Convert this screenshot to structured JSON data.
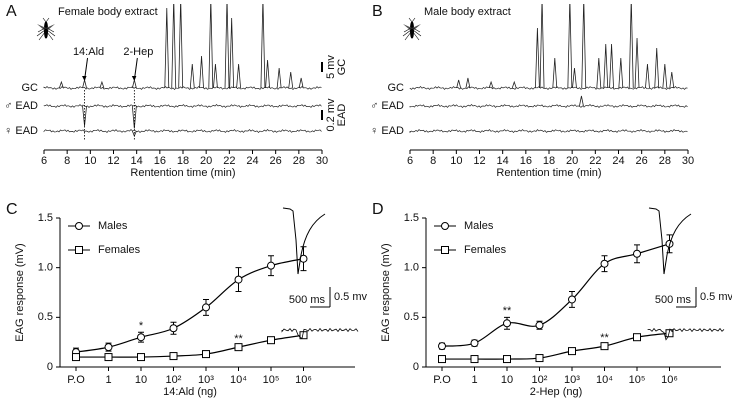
{
  "chart_data": [
    {
      "type": "trace",
      "panel": "A",
      "title": "Female body extract",
      "xlabel": "Rentention time (min)",
      "xlim": [
        6,
        30
      ],
      "xticks": [
        6,
        8,
        10,
        12,
        14,
        16,
        18,
        20,
        22,
        24,
        26,
        28,
        30
      ],
      "series": [
        {
          "name": "GC",
          "x": [
            7.5,
            9.5,
            11,
            13.8,
            16.6,
            17.2,
            17.8,
            18.8,
            19.6,
            20.4,
            20.8,
            21.8,
            22.2,
            22.8,
            24.9,
            25.3,
            26.3,
            27.3,
            28.2
          ],
          "values": [
            3,
            4,
            3,
            4,
            40,
            45,
            45,
            12,
            16,
            45,
            12,
            45,
            35,
            12,
            45,
            14,
            10,
            8,
            5
          ]
        },
        {
          "name": "♂ EAD",
          "x": [
            9.5,
            13.8
          ],
          "values": [
            -0.4,
            -0.45
          ]
        },
        {
          "name": "♀ EAD",
          "x": [
            13.8
          ],
          "values": [
            -0.1
          ]
        }
      ],
      "annotations": [
        {
          "text": "14:Ald",
          "x": 9.5
        },
        {
          "text": "2-Hep",
          "x": 13.8
        }
      ],
      "scale_bars": [
        {
          "value": 5,
          "label": "5 mv",
          "trace": "GC"
        },
        {
          "value": 0.2,
          "label": "0.2 mv",
          "trace": "EAD"
        }
      ]
    },
    {
      "type": "trace",
      "panel": "B",
      "title": "Male body extract",
      "xlabel": "Rentention time (min)",
      "xlim": [
        6,
        30
      ],
      "xticks": [
        6,
        8,
        10,
        12,
        14,
        16,
        18,
        20,
        22,
        24,
        26,
        28,
        30
      ],
      "series": [
        {
          "name": "GC",
          "x": [
            10.2,
            11,
            13,
            15,
            17,
            17.4,
            18.5,
            19.8,
            20.2,
            21,
            22.3,
            22.9,
            23.4,
            24.2,
            25.1,
            25.6,
            26.5,
            27.3,
            28,
            28.6
          ],
          "values": [
            4,
            5,
            3,
            3,
            30,
            45,
            15,
            45,
            10,
            45,
            15,
            22,
            22,
            15,
            45,
            25,
            12,
            20,
            12,
            8
          ]
        },
        {
          "name": "♂ EAD",
          "x": [
            20.8
          ],
          "values": [
            0.2
          ]
        },
        {
          "name": "♀ EAD"
        }
      ]
    },
    {
      "type": "line",
      "panel": "C",
      "xlabel": "14:Ald (ng)",
      "ylabel": "EAG response (mV)",
      "categories": [
        "P.O",
        "1",
        "10",
        "10²",
        "10³",
        "10⁴",
        "10⁵",
        "10⁶"
      ],
      "ylim": [
        0,
        1.5
      ],
      "yticks": [
        0,
        0.5,
        {
          "value": 1,
          "label": "1.0"
        },
        1.5
      ],
      "legend": "upper left",
      "series": [
        {
          "name": "Males",
          "marker": "circle",
          "color": "#000000",
          "values": [
            0.15,
            0.2,
            0.3,
            0.39,
            0.6,
            0.88,
            1.02,
            1.09
          ],
          "errors": [
            0.04,
            0.04,
            0.05,
            0.06,
            0.08,
            0.12,
            0.1,
            0.12
          ]
        },
        {
          "name": "Females",
          "marker": "square",
          "color": "#000000",
          "values": [
            0.1,
            0.1,
            0.1,
            0.11,
            0.13,
            0.2,
            0.27,
            0.32
          ],
          "errors": [
            0.02,
            0.02,
            0.02,
            0.02,
            0.02,
            0.02,
            0.03,
            0.03
          ]
        }
      ],
      "annotations": [
        {
          "text": "*",
          "series": 0,
          "category": 2
        },
        {
          "text": "**",
          "series": 1,
          "category": 5
        }
      ],
      "scale_bar": {
        "x": {
          "value": 500,
          "label": "500 ms"
        },
        "y": {
          "value": 0.5,
          "label": "0.5 mv"
        }
      }
    },
    {
      "type": "line",
      "panel": "D",
      "xlabel": "2-Hep (ng)",
      "ylabel": "EAG response (mV)",
      "categories": [
        "P.O",
        "1",
        "10",
        "10²",
        "10³",
        "10⁴",
        "10⁵",
        "10⁶"
      ],
      "ylim": [
        0,
        1.5
      ],
      "yticks": [
        0,
        0.5,
        {
          "value": 1,
          "label": "1.0"
        },
        1.5
      ],
      "legend": "upper left",
      "series": [
        {
          "name": "Males",
          "marker": "circle",
          "color": "#000000",
          "values": [
            0.21,
            0.24,
            0.44,
            0.42,
            0.68,
            1.04,
            1.14,
            1.24
          ],
          "errors": [
            0.03,
            0.03,
            0.06,
            0.04,
            0.08,
            0.08,
            0.09,
            0.09
          ]
        },
        {
          "name": "Females",
          "marker": "square",
          "color": "#000000",
          "values": [
            0.08,
            0.08,
            0.08,
            0.09,
            0.16,
            0.21,
            0.3,
            0.34
          ],
          "errors": [
            0.02,
            0.02,
            0.02,
            0.02,
            0.02,
            0.02,
            0.03,
            0.03
          ]
        }
      ],
      "annotations": [
        {
          "text": "**",
          "series": 0,
          "category": 2
        },
        {
          "text": "**",
          "series": 1,
          "category": 5
        }
      ],
      "scale_bar": {
        "x": {
          "value": 500,
          "label": "500 ms"
        },
        "y": {
          "value": 0.5,
          "label": "0.5 mv"
        }
      }
    }
  ]
}
